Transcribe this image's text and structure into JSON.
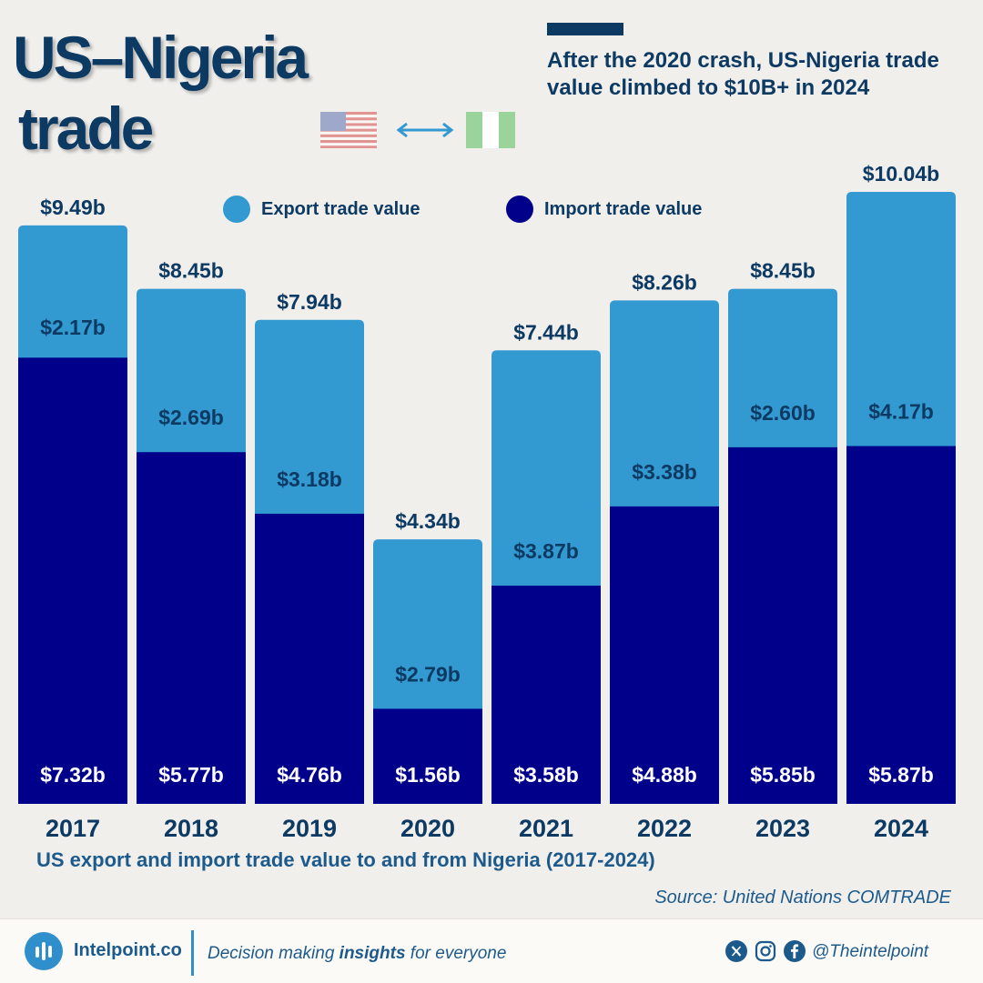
{
  "title": {
    "line1": "US–Nigeria",
    "line2": "trade"
  },
  "subtitle": "After the 2020 crash, US-Nigeria trade value climbed to $10B+ in 2024",
  "legend": {
    "export_label": "Export trade value",
    "import_label": "Import trade value"
  },
  "colors": {
    "export": "#3399d1",
    "import": "#01008a",
    "accent": "#0d3a63",
    "background": "#f1efec"
  },
  "chart_data": {
    "type": "bar",
    "stacked": true,
    "categories": [
      "2017",
      "2018",
      "2019",
      "2020",
      "2021",
      "2022",
      "2023",
      "2024"
    ],
    "series": [
      {
        "name": "Import trade value",
        "values": [
          7.32,
          5.77,
          4.76,
          1.56,
          3.58,
          4.88,
          5.85,
          5.87
        ]
      },
      {
        "name": "Export trade value",
        "values": [
          2.17,
          2.69,
          3.18,
          2.79,
          3.87,
          3.38,
          2.6,
          4.17
        ]
      }
    ],
    "totals": [
      9.49,
      8.45,
      7.94,
      4.34,
      7.44,
      8.26,
      8.45,
      10.04
    ],
    "labels": {
      "import": [
        "$7.32b",
        "$5.77b",
        "$4.76b",
        "$1.56b",
        "$3.58b",
        "$4.88b",
        "$5.85b",
        "$5.87b"
      ],
      "export": [
        "$2.17b",
        "$2.69b",
        "$3.18b",
        "$2.79b",
        "$3.87b",
        "$3.38b",
        "$2.60b",
        "$4.17b"
      ],
      "total": [
        "$9.49b",
        "$8.45b",
        "$7.94b",
        "$4.34b",
        "$7.44b",
        "$8.26b",
        "$8.45b",
        "$10.04b"
      ]
    },
    "ylim": [
      0,
      10.04
    ],
    "grid": false,
    "legend_position": "top"
  },
  "caption": "US export and import trade value to and from Nigeria (2017-2024)",
  "source": "Source: United Nations COMTRADE",
  "footer": {
    "brand": "Intelpoint.co",
    "tagline_pre": "Decision making ",
    "tagline_bold": "insights",
    "tagline_post": " for everyone",
    "handle": "@Theintelpoint"
  },
  "icons": {
    "logo": "bar-chart-icon",
    "social": [
      "x-icon",
      "instagram-icon",
      "facebook-icon"
    ],
    "flags": [
      "us-flag-icon",
      "nigeria-flag-icon"
    ],
    "exchange": "double-arrow-icon"
  }
}
